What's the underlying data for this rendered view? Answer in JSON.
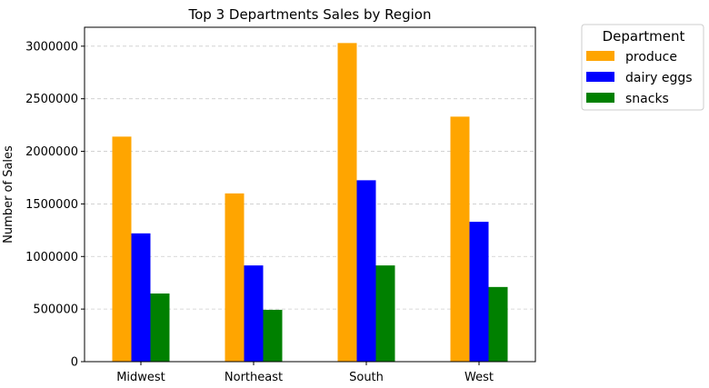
{
  "chart_data": {
    "type": "bar",
    "title": "Top 3 Departments Sales by Region",
    "xlabel": "",
    "ylabel": "Number of Sales",
    "categories": [
      "Midwest",
      "Northeast",
      "South",
      "West"
    ],
    "series": [
      {
        "name": "produce",
        "color": "#ffa500",
        "values": [
          2140000,
          1600000,
          3030000,
          2330000
        ]
      },
      {
        "name": "dairy eggs",
        "color": "#0000ff",
        "values": [
          1220000,
          915000,
          1725000,
          1330000
        ]
      },
      {
        "name": "snacks",
        "color": "#008000",
        "values": [
          648000,
          493000,
          915000,
          710000
        ]
      }
    ],
    "ylim": [
      0,
      3180000
    ],
    "yticks": [
      0,
      500000,
      1000000,
      1500000,
      2000000,
      2500000,
      3000000
    ],
    "grid": "y-dashed",
    "legend": {
      "title": "Department",
      "placement": "outside-right-top"
    }
  }
}
